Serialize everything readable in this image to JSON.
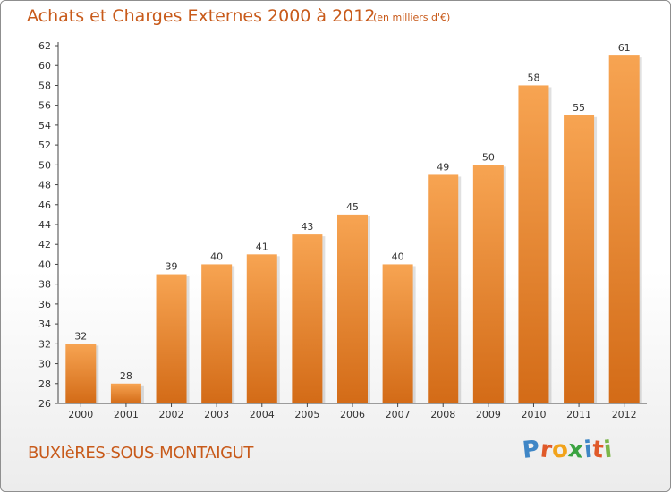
{
  "header": {
    "title": "Achats et Charges Externes 2000 à 2012",
    "unit": "(en milliers d'€)"
  },
  "footer": {
    "commune": "BUXIèRES-SOUS-MONTAIGUT",
    "logo_letters": [
      "P",
      "r",
      "o",
      "x",
      "i",
      "t",
      "i"
    ],
    "logo_colors": [
      "#3f86c6",
      "#e05a2a",
      "#f2a31b",
      "#3aa341",
      "#3f86c6",
      "#e05a2a",
      "#7ab648"
    ]
  },
  "colors": {
    "bar_top": "#f7a452",
    "bar_bottom": "#d36b17",
    "text": "#c85a1a",
    "axis": "#444444"
  },
  "chart_data": {
    "type": "bar",
    "categories": [
      "2000",
      "2001",
      "2002",
      "2003",
      "2004",
      "2005",
      "2006",
      "2007",
      "2008",
      "2009",
      "2010",
      "2011",
      "2012"
    ],
    "values": [
      32,
      28,
      39,
      40,
      41,
      43,
      45,
      40,
      49,
      50,
      58,
      55,
      61
    ],
    "ylim": [
      26,
      62
    ],
    "ytick_step": 2,
    "grid": false,
    "data_labels": true
  }
}
